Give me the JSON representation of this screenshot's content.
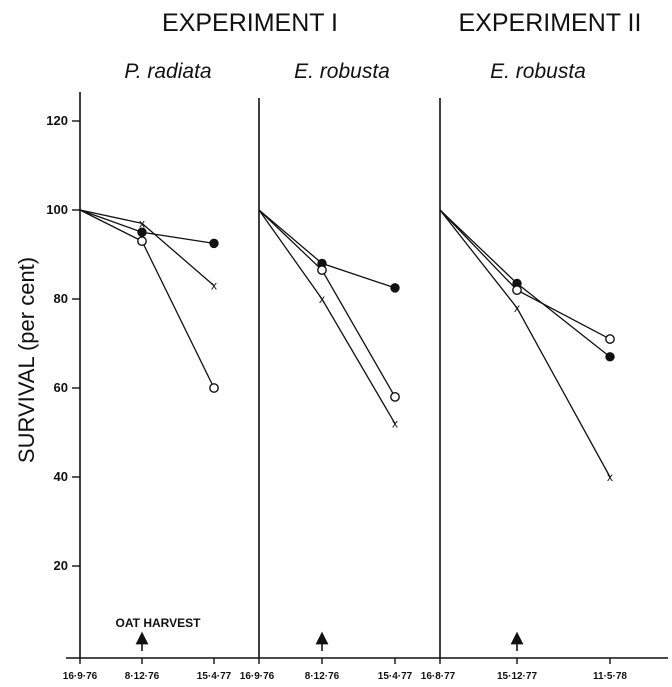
{
  "title_left": "EXPERIMENT I",
  "title_right": "EXPERIMENT II",
  "y_axis_label": "SURVIVAL (per cent)",
  "annotation": "OAT HARVEST",
  "chart_data": {
    "type": "line",
    "ylabel": "SURVIVAL (per cent)",
    "ylim": [
      0,
      130
    ],
    "yticks": [
      20,
      40,
      60,
      80,
      100,
      120
    ],
    "panels": [
      {
        "title": "P. radiata",
        "x": [
          "16·9·76",
          "8·12·76",
          "15·4·77"
        ],
        "series": [
          {
            "marker": "filled-circle",
            "values": [
              100,
              95,
              92.5
            ]
          },
          {
            "marker": "cross",
            "values": [
              100,
              97,
              83
            ]
          },
          {
            "marker": "open-circle",
            "values": [
              100,
              93,
              60
            ]
          }
        ]
      },
      {
        "title": "E. robusta",
        "x": [
          "16·9·76",
          "8·12·76",
          "15·4·77"
        ],
        "series": [
          {
            "marker": "filled-circle",
            "values": [
              100,
              88,
              82.5
            ]
          },
          {
            "marker": "cross",
            "values": [
              100,
              80,
              52
            ]
          },
          {
            "marker": "open-circle",
            "values": [
              100,
              86.5,
              58
            ]
          }
        ]
      },
      {
        "title": "E. robusta",
        "x": [
          "16·8·77",
          "15·12·77",
          "11·5·78"
        ],
        "series": [
          {
            "marker": "filled-circle",
            "values": [
              100,
              83.5,
              67
            ]
          },
          {
            "marker": "cross",
            "values": [
              100,
              78,
              40
            ]
          },
          {
            "marker": "open-circle",
            "values": [
              100,
              82,
              71
            ]
          }
        ]
      }
    ]
  }
}
